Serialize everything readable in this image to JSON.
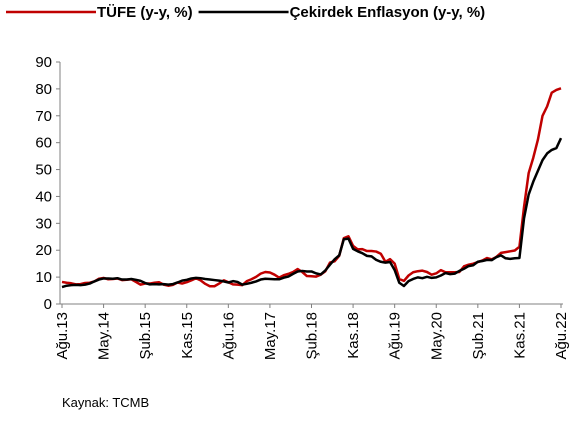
{
  "chart_data": {
    "type": "line",
    "source": "Kaynak: TCMB",
    "categories": [
      "Ağu.13",
      null,
      null,
      null,
      null,
      null,
      null,
      null,
      null,
      "May.14",
      null,
      null,
      null,
      null,
      null,
      null,
      null,
      null,
      "Şub.15",
      null,
      null,
      null,
      null,
      null,
      null,
      null,
      null,
      "Kas.15",
      null,
      null,
      null,
      null,
      null,
      null,
      null,
      null,
      "Ağu.16",
      null,
      null,
      null,
      null,
      null,
      null,
      null,
      null,
      "May.17",
      null,
      null,
      null,
      null,
      null,
      null,
      null,
      null,
      "Şub.18",
      null,
      null,
      null,
      null,
      null,
      null,
      null,
      null,
      "Kas.18",
      null,
      null,
      null,
      null,
      null,
      null,
      null,
      null,
      "Ağu.19",
      null,
      null,
      null,
      null,
      null,
      null,
      null,
      null,
      "May.20",
      null,
      null,
      null,
      null,
      null,
      null,
      null,
      null,
      "Şub.21",
      null,
      null,
      null,
      null,
      null,
      null,
      null,
      null,
      "Kas.21",
      null,
      null,
      null,
      null,
      null,
      null,
      null,
      null,
      "Ağu.22"
    ],
    "series": [
      {
        "name": "TÜFE (y-y, %)",
        "color": "#c00000",
        "values": [
          8.2,
          7.9,
          7.7,
          7.3,
          7.4,
          7.8,
          7.9,
          8.4,
          9.4,
          9.7,
          9.2,
          9.3,
          9.5,
          8.9,
          9.0,
          9.2,
          8.2,
          7.2,
          7.6,
          7.6,
          7.9,
          8.1,
          7.2,
          6.8,
          7.1,
          8.0,
          7.6,
          8.1,
          8.8,
          9.6,
          8.8,
          7.5,
          6.6,
          6.6,
          7.6,
          8.8,
          8.1,
          7.3,
          7.2,
          7.0,
          8.5,
          9.2,
          10.1,
          11.3,
          11.9,
          11.7,
          10.9,
          9.8,
          10.7,
          11.2,
          11.9,
          13.0,
          11.9,
          10.4,
          10.3,
          10.2,
          10.9,
          12.2,
          15.4,
          15.9,
          17.9,
          24.5,
          25.2,
          21.6,
          20.3,
          20.4,
          19.7,
          19.7,
          19.5,
          18.7,
          15.7,
          16.7,
          15.0,
          9.3,
          8.6,
          10.6,
          11.8,
          12.2,
          12.4,
          11.9,
          10.9,
          11.4,
          12.6,
          11.8,
          11.8,
          11.8,
          11.9,
          14.0,
          14.6,
          15.0,
          15.6,
          16.2,
          17.1,
          16.6,
          17.5,
          19.0,
          19.3,
          19.6,
          19.9,
          21.3,
          36.1,
          48.7,
          54.4,
          61.1,
          70.0,
          73.5,
          78.6,
          79.6,
          80.2
        ]
      },
      {
        "name": "Çekirdek Enflasyon (y-y, %)",
        "color": "#000000",
        "values": [
          6.3,
          6.8,
          7.0,
          7.1,
          7.0,
          7.2,
          7.6,
          8.4,
          9.1,
          9.5,
          9.5,
          9.4,
          9.6,
          9.1,
          9.1,
          9.3,
          9.0,
          8.6,
          7.8,
          7.3,
          7.4,
          7.3,
          7.4,
          7.2,
          7.4,
          8.0,
          8.7,
          9.0,
          9.5,
          9.7,
          9.6,
          9.3,
          9.1,
          8.9,
          8.7,
          8.4,
          8.0,
          8.5,
          8.2,
          7.2,
          7.5,
          7.9,
          8.4,
          9.1,
          9.4,
          9.3,
          9.2,
          9.2,
          9.8,
          10.2,
          11.2,
          12.1,
          12.3,
          12.1,
          12.1,
          11.4,
          11.0,
          12.5,
          14.6,
          16.6,
          18.1,
          24.1,
          24.3,
          20.5,
          19.6,
          18.9,
          17.9,
          17.7,
          16.4,
          15.7,
          15.4,
          15.6,
          12.6,
          7.9,
          6.7,
          8.5,
          9.3,
          9.9,
          9.6,
          10.1,
          9.7,
          9.9,
          10.6,
          11.5,
          11.1,
          11.3,
          12.3,
          13.1,
          14.1,
          14.4,
          15.7,
          16.0,
          16.4,
          16.3,
          17.4,
          18.1,
          17.0,
          16.8,
          17.0,
          17.1,
          31.9,
          40.7,
          45.5,
          49.5,
          53.5,
          56.0,
          57.3,
          58.0,
          61.7
        ]
      }
    ],
    "ylim": [
      0,
      90
    ],
    "yticks": [
      0,
      10,
      20,
      30,
      40,
      50,
      60,
      70,
      80,
      90
    ],
    "grid": false,
    "legend": "top"
  }
}
